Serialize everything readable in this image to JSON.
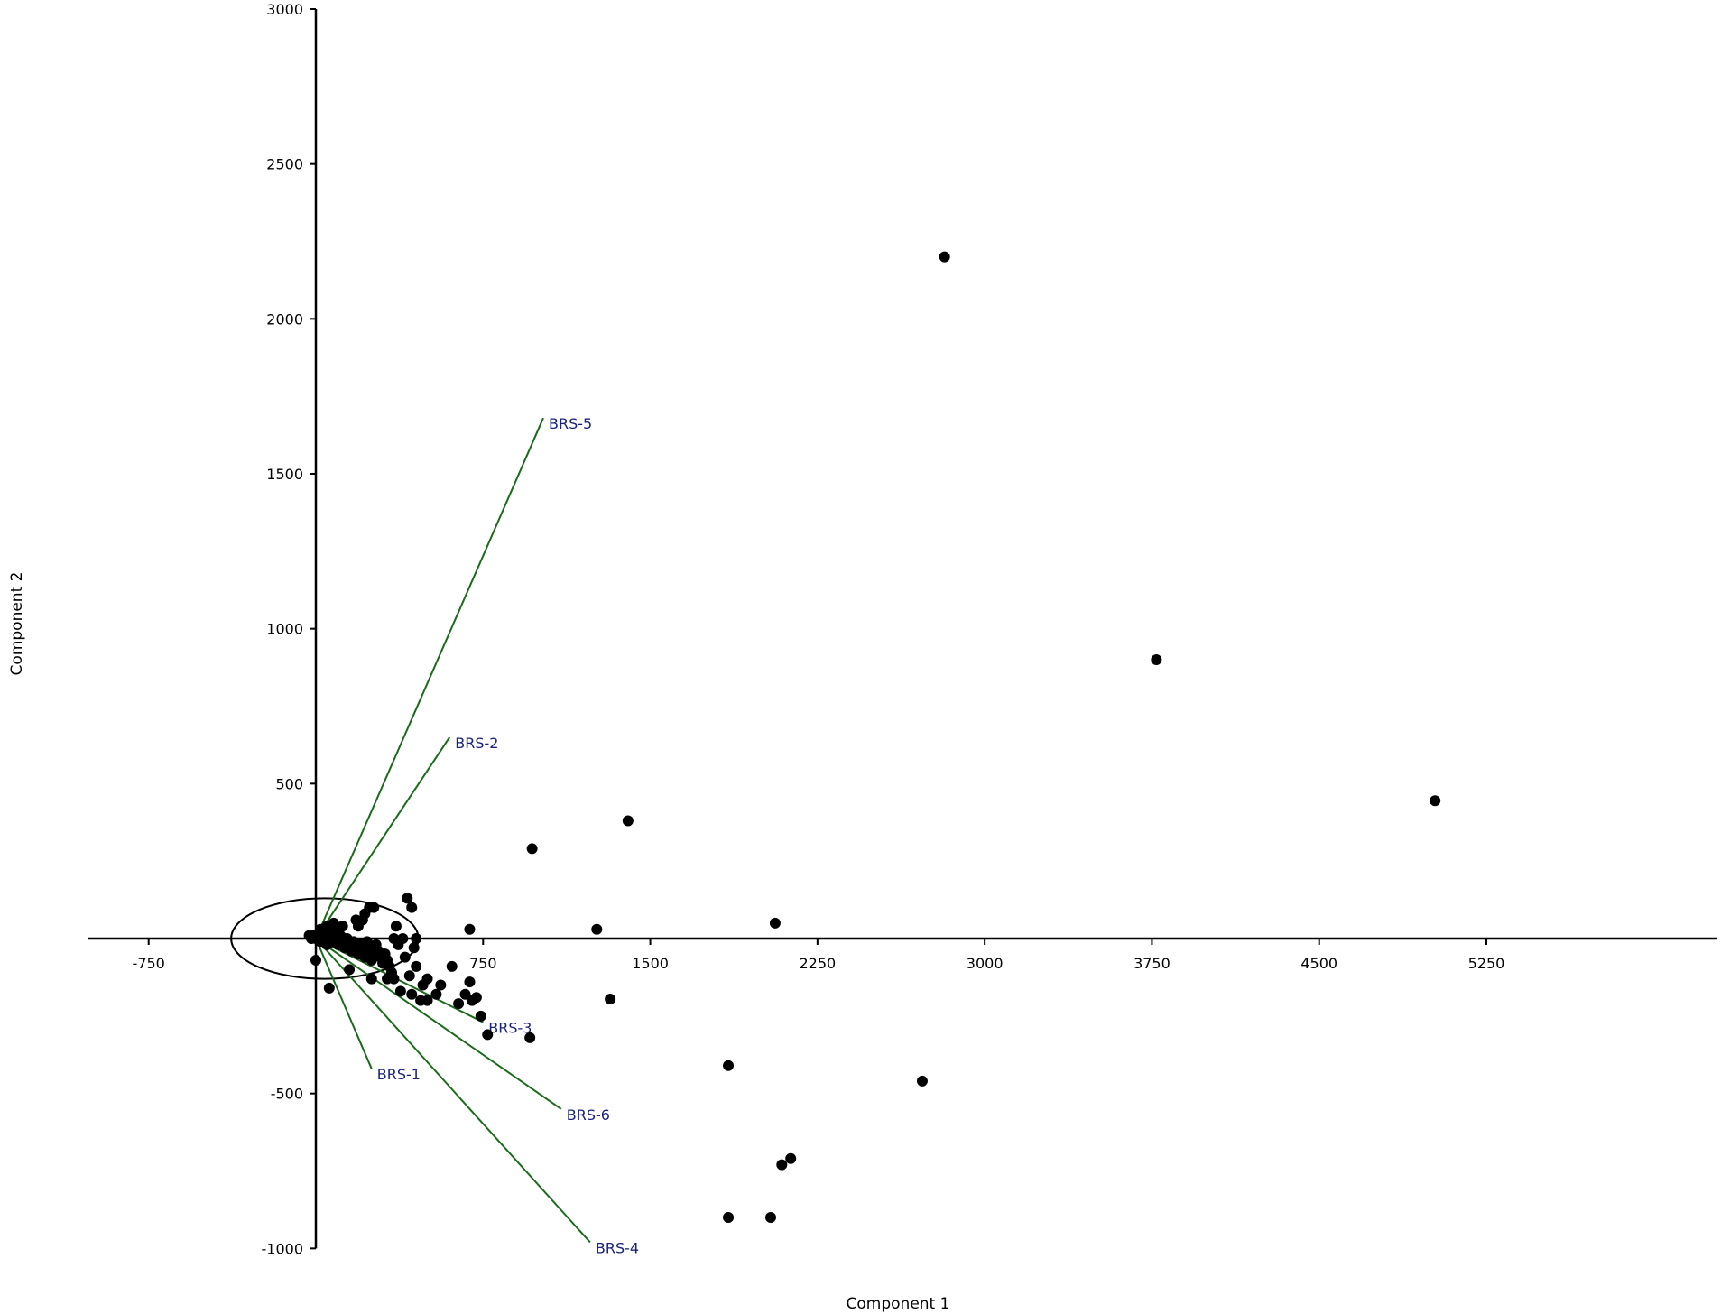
{
  "chart_data": {
    "type": "scatter",
    "title": "",
    "xlabel": "Component 1",
    "ylabel": "Component 2",
    "xlim": [
      -1000,
      6000
    ],
    "ylim": [
      -1000,
      3000
    ],
    "x_ticks": [
      -750,
      750,
      1500,
      2250,
      3000,
      3750,
      4500,
      5250
    ],
    "y_ticks": [
      3000,
      2500,
      2000,
      1500,
      1000,
      500,
      -500,
      -1000
    ],
    "grid": false,
    "legend": "none",
    "colors": {
      "points": "#000000",
      "vectors": "#1a6b1a",
      "vector_labels": "#1a237e",
      "axes": "#000000"
    },
    "ellipse": {
      "cx": 40,
      "cy": 0,
      "rx": 420,
      "ry": 130
    },
    "loadings": [
      {
        "label": "BRS-1",
        "x": 250,
        "y": -420
      },
      {
        "label": "BRS-2",
        "x": 600,
        "y": 650
      },
      {
        "label": "BRS-3",
        "x": 750,
        "y": -270
      },
      {
        "label": "BRS-4",
        "x": 1230,
        "y": -980
      },
      {
        "label": "BRS-5",
        "x": 1020,
        "y": 1680
      },
      {
        "label": "BRS-6",
        "x": 1100,
        "y": -550
      }
    ],
    "points": [
      [
        2820,
        2200
      ],
      [
        3770,
        900
      ],
      [
        5020,
        445
      ],
      [
        1400,
        380
      ],
      [
        970,
        290
      ],
      [
        2060,
        50
      ],
      [
        1260,
        30
      ],
      [
        690,
        30
      ],
      [
        1320,
        -195
      ],
      [
        960,
        -320
      ],
      [
        1850,
        -410
      ],
      [
        2720,
        -460
      ],
      [
        2130,
        -710
      ],
      [
        2090,
        -730
      ],
      [
        1850,
        -900
      ],
      [
        2040,
        -900
      ],
      [
        770,
        -310
      ],
      [
        740,
        -250
      ],
      [
        720,
        -190
      ],
      [
        700,
        -200
      ],
      [
        690,
        -140
      ],
      [
        670,
        -180
      ],
      [
        640,
        -210
      ],
      [
        610,
        -90
      ],
      [
        560,
        -150
      ],
      [
        540,
        -180
      ],
      [
        500,
        -130
      ],
      [
        480,
        -150
      ],
      [
        450,
        -90
      ],
      [
        430,
        -180
      ],
      [
        420,
        -120
      ],
      [
        400,
        -60
      ],
      [
        390,
        0
      ],
      [
        440,
        -30
      ],
      [
        370,
        -20
      ],
      [
        360,
        40
      ],
      [
        350,
        -130
      ],
      [
        340,
        -110
      ],
      [
        330,
        -90
      ],
      [
        320,
        -70
      ],
      [
        310,
        -50
      ],
      [
        300,
        -80
      ],
      [
        290,
        -60
      ],
      [
        280,
        -40
      ],
      [
        270,
        -20
      ],
      [
        260,
        -50
      ],
      [
        250,
        -70
      ],
      [
        240,
        -30
      ],
      [
        230,
        -10
      ],
      [
        220,
        -60
      ],
      [
        210,
        -40
      ],
      [
        200,
        -20
      ],
      [
        190,
        -50
      ],
      [
        180,
        -30
      ],
      [
        170,
        -10
      ],
      [
        160,
        -40
      ],
      [
        150,
        -20
      ],
      [
        140,
        0
      ],
      [
        130,
        -30
      ],
      [
        120,
        -10
      ],
      [
        110,
        10
      ],
      [
        100,
        -20
      ],
      [
        90,
        0
      ],
      [
        80,
        20
      ],
      [
        70,
        -10
      ],
      [
        60,
        10
      ],
      [
        50,
        -20
      ],
      [
        40,
        0
      ],
      [
        30,
        10
      ],
      [
        20,
        -10
      ],
      [
        10,
        5
      ],
      [
        0,
        0
      ],
      [
        -10,
        10
      ],
      [
        -20,
        0
      ],
      [
        -30,
        10
      ],
      [
        240,
        100
      ],
      [
        220,
        80
      ],
      [
        210,
        60
      ],
      [
        190,
        40
      ],
      [
        180,
        60
      ],
      [
        260,
        100
      ],
      [
        430,
        100
      ],
      [
        410,
        130
      ],
      [
        450,
        0
      ],
      [
        350,
        0
      ],
      [
        250,
        -130
      ],
      [
        60,
        -160
      ],
      [
        0,
        -70
      ],
      [
        150,
        -100
      ],
      [
        320,
        -130
      ],
      [
        380,
        -170
      ],
      [
        500,
        -200
      ],
      [
        470,
        -200
      ],
      [
        120,
        40
      ],
      [
        100,
        30
      ],
      [
        80,
        50
      ],
      [
        50,
        40
      ],
      [
        20,
        30
      ]
    ]
  }
}
